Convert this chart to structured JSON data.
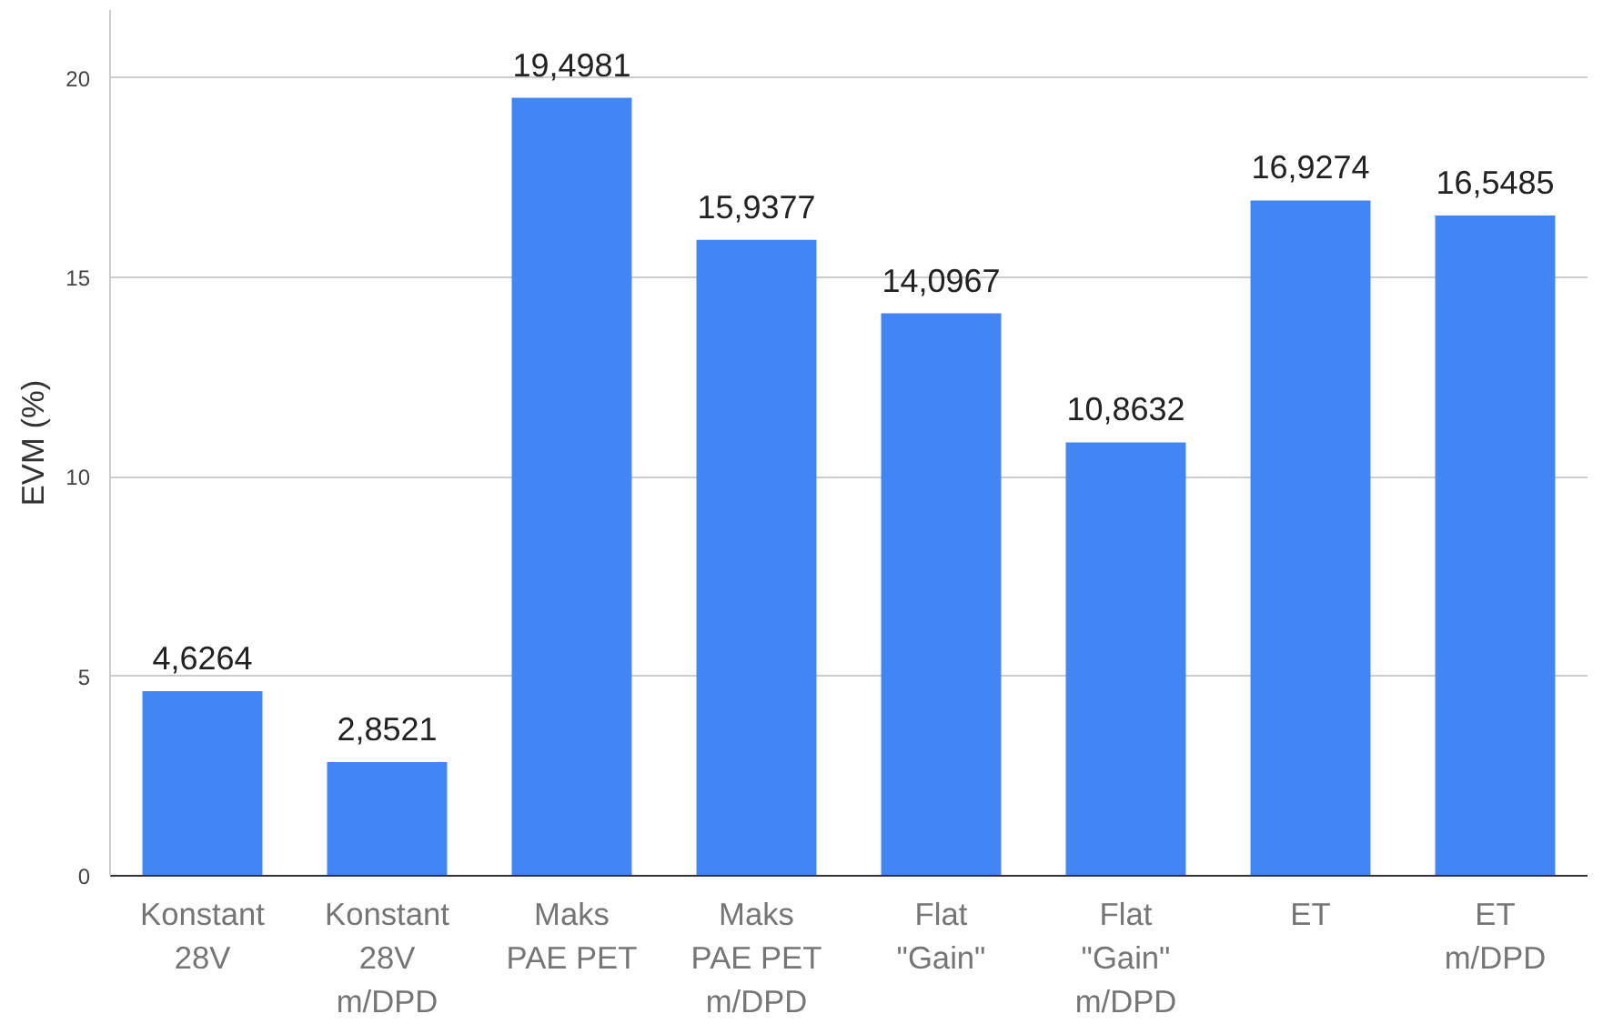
{
  "chart_data": {
    "type": "bar",
    "ylabel": "EVM (%)",
    "categories": [
      "Konstant\n28V",
      "Konstant\n28V\nm/DPD",
      "Maks\nPAE PET",
      "Maks\nPAE PET\nm/DPD",
      "Flat\n\"Gain\"",
      "Flat\n\"Gain\"\nm/DPD",
      "ET",
      "ET\nm/DPD"
    ],
    "values": [
      4.6264,
      2.8521,
      19.4981,
      15.9377,
      14.0967,
      10.8632,
      16.9274,
      16.5485
    ],
    "value_labels": [
      "4,6264",
      "2,8521",
      "19,4981",
      "15,9377",
      "14,0967",
      "10,8632",
      "16,9274",
      "16,5485"
    ],
    "color": "#4285f4",
    "ylim": [
      0,
      21.7
    ],
    "yticks": [
      0,
      5,
      10,
      15,
      20
    ],
    "grid": "y"
  }
}
